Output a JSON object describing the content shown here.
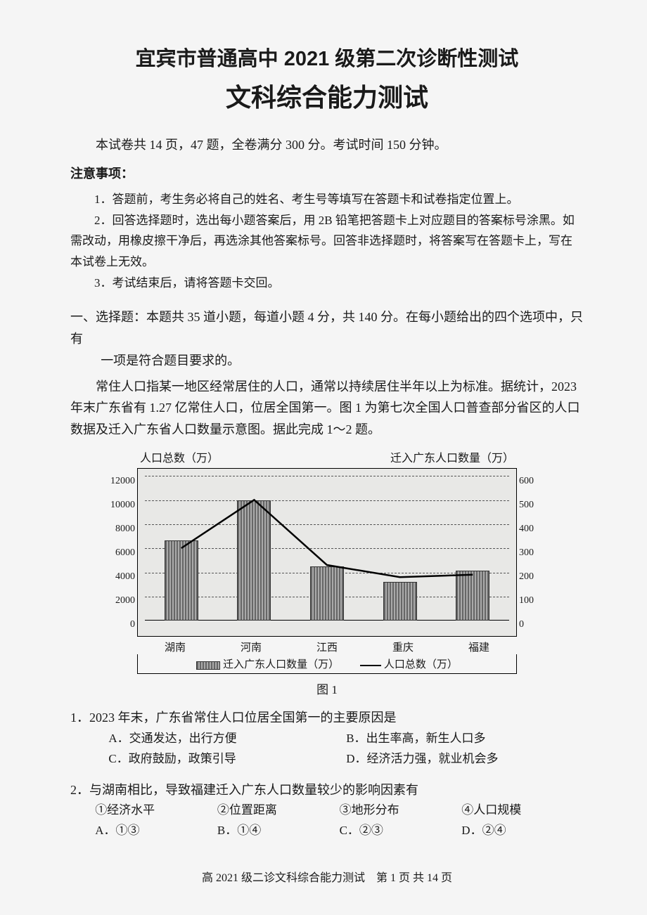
{
  "title1": "宜宾市普通高中 2021 级第二次诊断性测试",
  "title2": "文科综合能力测试",
  "intro": "本试卷共 14 页，47 题，全卷满分 300 分。考试时间 150 分钟。",
  "noticeTitle": "注意事项：",
  "notices": [
    "1．答题前，考生务必将自己的姓名、考生号等填写在答题卡和试卷指定位置上。",
    "2．回答选择题时，选出每小题答案后，用 2B 铅笔把答题卡上对应题目的答案标号涂黑。如需改动，用橡皮擦干净后，再选涂其他答案标号。回答非选择题时，将答案写在答题卡上，写在本试卷上无效。",
    "3．考试结束后，请将答题卡交回。"
  ],
  "sectionHeader": "一、选择题：本题共 35 道小题，每道小题 4 分，共 140 分。在每小题给出的四个选项中，只有",
  "sectionHeaderCont": "一项是符合题目要求的。",
  "passage": "常住人口指某一地区经常居住的人口，通常以持续居住半年以上为标准。据统计，2023 年末广东省有 1.27 亿常住人口，位居全国第一。图 1 为第七次全国人口普查部分省区的人口数据及迁入广东省人口数量示意图。据此完成 1～2 题。",
  "chart": {
    "yLeftTitle": "人口总数（万）",
    "yRightTitle": "迁入广东人口数量（万）",
    "yLeftTicks": [
      "12000",
      "10000",
      "8000",
      "6000",
      "4000",
      "2000",
      "0"
    ],
    "yRightTicks": [
      "600",
      "500",
      "400",
      "300",
      "200",
      "100",
      "0"
    ],
    "yLeftMax": 12000,
    "yRightMax": 600,
    "gridFractions": [
      0.1667,
      0.3333,
      0.5,
      0.6667,
      0.8333
    ],
    "categories": [
      "湖南",
      "河南",
      "江西",
      "重庆",
      "福建"
    ],
    "barValues": [
      6650,
      9960,
      4500,
      3200,
      4160
    ],
    "lineValues": [
      300,
      500,
      230,
      180,
      190
    ],
    "barHatchColor1": "#666666",
    "barHatchColor2": "#aaaaaa",
    "lineColor": "#000000",
    "backgroundColor": "#e8e8e6",
    "legend1": "迁入广东人口数量（万）",
    "legend2": "人口总数（万）",
    "caption": "图 1"
  },
  "q1": {
    "stem": "1．2023 年末，广东省常住人口位居全国第一的主要原因是",
    "optA": "A．交通发达，出行方便",
    "optB": "B．出生率高，新生人口多",
    "optC": "C．政府鼓励，政策引导",
    "optD": "D．经济活力强，就业机会多"
  },
  "q2": {
    "stem": "2．与湖南相比，导致福建迁入广东人口数量较少的影响因素有",
    "f1": "①经济水平",
    "f2": "②位置距离",
    "f3": "③地形分布",
    "f4": "④人口规模",
    "optA": "A．①③",
    "optB": "B．①④",
    "optC": "C．②③",
    "optD": "D．②④"
  },
  "footer": "高 2021 级二诊文科综合能力测试　第 1 页 共 14 页"
}
